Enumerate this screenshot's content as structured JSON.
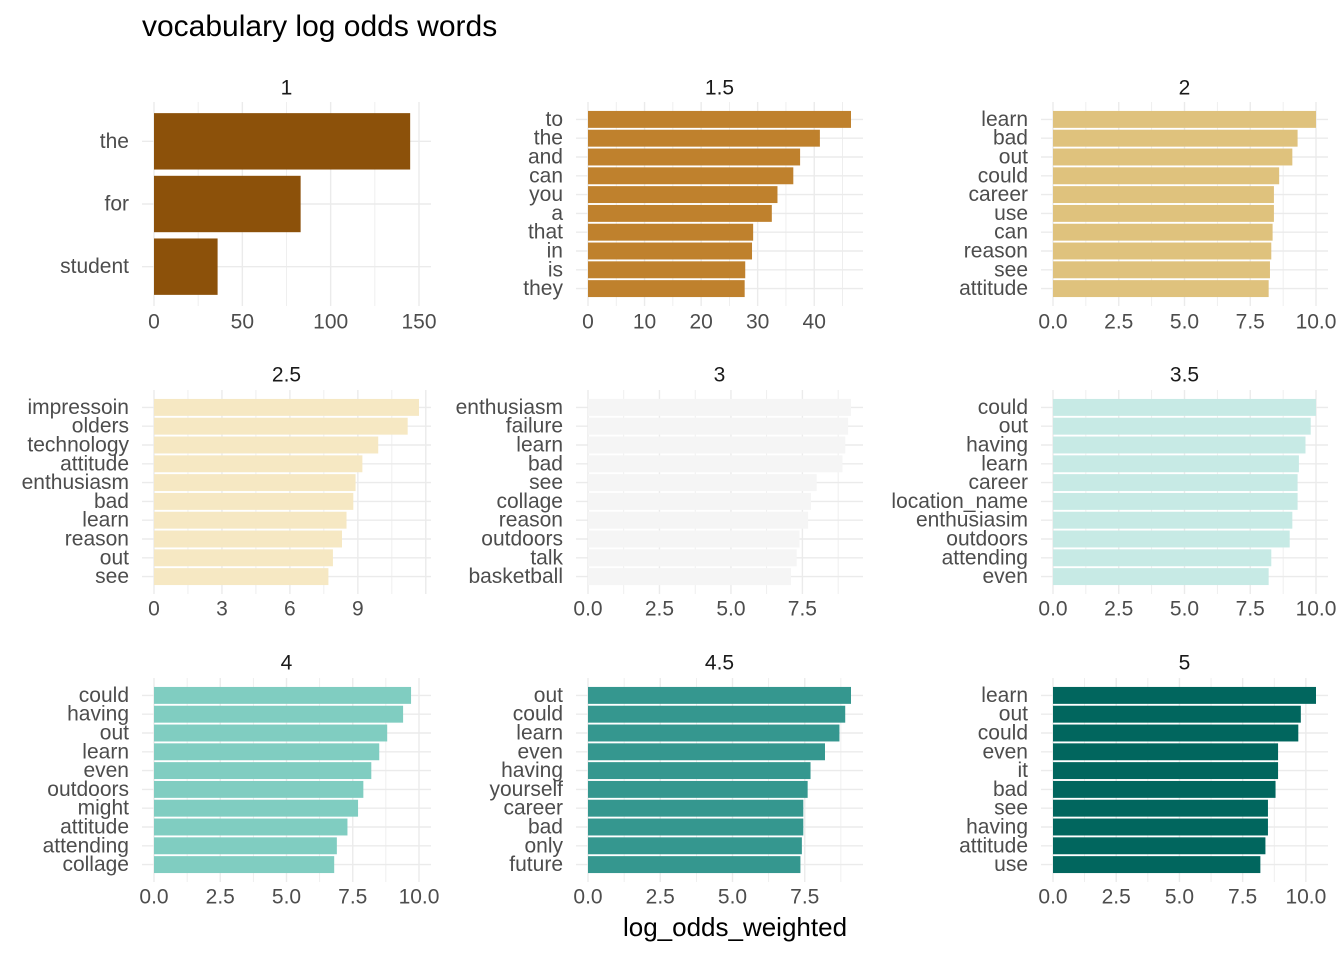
{
  "title": "vocabulary log odds words",
  "x_axis_title": "log_odds_weighted",
  "chart_data": [
    {
      "type": "bar",
      "panel": "1",
      "color": "#8C510A",
      "categories": [
        "the",
        "for",
        "student"
      ],
      "values": [
        145,
        83,
        36
      ],
      "xlim": [
        0,
        150
      ],
      "xticks": [
        0,
        50,
        100,
        150
      ],
      "xtick_labels": [
        "0",
        "50",
        "100",
        "150"
      ]
    },
    {
      "type": "bar",
      "panel": "1.5",
      "color": "#BF812D",
      "categories": [
        "to",
        "the",
        "and",
        "can",
        "you",
        "a",
        "that",
        "in",
        "is",
        "they"
      ],
      "values": [
        46.5,
        41.0,
        37.5,
        36.3,
        33.5,
        32.5,
        29.2,
        29.0,
        27.8,
        27.7
      ],
      "xlim": [
        0,
        46.5
      ],
      "xticks": [
        0,
        10,
        20,
        30,
        40
      ],
      "xtick_labels": [
        "0",
        "10",
        "20",
        "30",
        "40"
      ]
    },
    {
      "type": "bar",
      "panel": "2",
      "color": "#DFC27D",
      "categories": [
        "learn",
        "bad",
        "out",
        "could",
        "career",
        "use",
        "can",
        "reason",
        "see",
        "attitude"
      ],
      "values": [
        10.0,
        9.3,
        9.1,
        8.6,
        8.4,
        8.4,
        8.35,
        8.3,
        8.25,
        8.2
      ],
      "xlim": [
        0,
        10
      ],
      "xticks": [
        0,
        2.5,
        5,
        7.5,
        10
      ],
      "xtick_labels": [
        "0.0",
        "2.5",
        "5.0",
        "7.5",
        "10.0"
      ]
    },
    {
      "type": "bar",
      "panel": "2.5",
      "color": "#F6E8C3",
      "categories": [
        "impressoin",
        "olders",
        "technology",
        "attitude",
        "enthusiasm",
        "bad",
        "learn",
        "reason",
        "out",
        "see"
      ],
      "values": [
        11.7,
        11.2,
        9.9,
        9.2,
        8.9,
        8.8,
        8.5,
        8.3,
        7.9,
        7.7
      ],
      "xlim": [
        0,
        11.7
      ],
      "xticks": [
        0,
        3,
        6,
        9
      ],
      "xtick_labels": [
        "0",
        "3",
        "6",
        "9"
      ]
    },
    {
      "type": "bar",
      "panel": "3",
      "color": "#F5F5F5",
      "categories": [
        "enthusiasm",
        "failure",
        "learn",
        "bad",
        "see",
        "collage",
        "reason",
        "outdoors",
        "talk",
        "basketball"
      ],
      "values": [
        9.2,
        9.1,
        9.0,
        8.9,
        8.0,
        7.8,
        7.7,
        7.4,
        7.3,
        7.1
      ],
      "xlim": [
        0,
        9.2
      ],
      "xticks": [
        0,
        2.5,
        5,
        7.5
      ],
      "xtick_labels": [
        "0.0",
        "2.5",
        "5.0",
        "7.5"
      ]
    },
    {
      "type": "bar",
      "panel": "3.5",
      "color": "#C7EAE5",
      "categories": [
        "could",
        "out",
        "having",
        "learn",
        "career",
        "location_name",
        "enthusiasim",
        "outdoors",
        "attending",
        "even"
      ],
      "values": [
        10.0,
        9.8,
        9.6,
        9.35,
        9.3,
        9.3,
        9.1,
        9.0,
        8.3,
        8.2
      ],
      "xlim": [
        0,
        10
      ],
      "xticks": [
        0,
        2.5,
        5,
        7.5,
        10
      ],
      "xtick_labels": [
        "0.0",
        "2.5",
        "5.0",
        "7.5",
        "10.0"
      ]
    },
    {
      "type": "bar",
      "panel": "4",
      "color": "#80CDC1",
      "categories": [
        "could",
        "having",
        "out",
        "learn",
        "even",
        "outdoors",
        "might",
        "attitude",
        "attending",
        "collage"
      ],
      "values": [
        9.7,
        9.4,
        8.8,
        8.5,
        8.2,
        7.9,
        7.7,
        7.3,
        6.9,
        6.8
      ],
      "xlim": [
        0,
        10
      ],
      "xticks": [
        0,
        2.5,
        5,
        7.5,
        10
      ],
      "xtick_labels": [
        "0.0",
        "2.5",
        "5.0",
        "7.5",
        "10.0"
      ]
    },
    {
      "type": "bar",
      "panel": "4.5",
      "color": "#35978F",
      "categories": [
        "out",
        "could",
        "learn",
        "even",
        "having",
        "yourself",
        "career",
        "bad",
        "only",
        "future"
      ],
      "values": [
        9.1,
        8.9,
        8.7,
        8.2,
        7.7,
        7.6,
        7.45,
        7.45,
        7.4,
        7.35
      ],
      "xlim": [
        0,
        9.1
      ],
      "xticks": [
        0,
        2.5,
        5,
        7.5
      ],
      "xtick_labels": [
        "0.0",
        "2.5",
        "5.0",
        "7.5"
      ]
    },
    {
      "type": "bar",
      "panel": "5",
      "color": "#01665E",
      "categories": [
        "learn",
        "out",
        "could",
        "even",
        "it",
        "bad",
        "see",
        "having",
        "attitude",
        "use"
      ],
      "values": [
        10.4,
        9.8,
        9.7,
        8.9,
        8.9,
        8.8,
        8.5,
        8.5,
        8.4,
        8.2
      ],
      "xlim": [
        0,
        10.4
      ],
      "xticks": [
        0,
        2.5,
        5,
        7.5,
        10
      ],
      "xtick_labels": [
        "0.0",
        "2.5",
        "5.0",
        "7.5",
        "10.0"
      ]
    }
  ]
}
